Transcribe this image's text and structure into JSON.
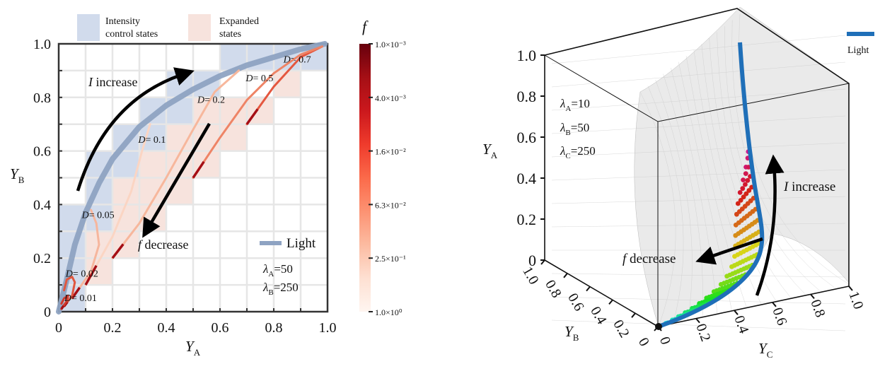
{
  "chart_data": [
    {
      "type": "line",
      "xlabel": "Y",
      "xlabel_sub": "A",
      "ylabel": "Y",
      "ylabel_sub": "B",
      "xlim": [
        0,
        1
      ],
      "ylim": [
        0,
        1
      ],
      "xticks": [
        "0",
        "0.2",
        "0.4",
        "0.6",
        "0.8",
        "1.0"
      ],
      "yticks": [
        "0",
        "0.2",
        "0.4",
        "0.6",
        "0.8",
        "1.0"
      ],
      "grid": true,
      "legend": {
        "intensity": "Intensity control states",
        "intensity_l1": "Intensity",
        "intensity_l2": "control states",
        "expanded_l1": "Expanded",
        "expanded_l2": "states",
        "light": "Light"
      },
      "intensity_cells": [
        [
          0,
          0
        ],
        [
          0,
          1
        ],
        [
          0,
          2
        ],
        [
          0,
          3
        ],
        [
          1,
          3
        ],
        [
          1,
          4
        ],
        [
          1,
          5
        ],
        [
          2,
          5
        ],
        [
          2,
          6
        ],
        [
          3,
          6
        ],
        [
          3,
          7
        ],
        [
          4,
          7
        ],
        [
          4,
          8
        ],
        [
          5,
          8
        ],
        [
          6,
          9
        ],
        [
          7,
          9
        ],
        [
          8,
          9
        ],
        [
          9,
          9
        ]
      ],
      "expanded_cells": [
        [
          1,
          1
        ],
        [
          1,
          2
        ],
        [
          2,
          2
        ],
        [
          2,
          3
        ],
        [
          3,
          3
        ],
        [
          2,
          4
        ],
        [
          3,
          4
        ],
        [
          4,
          4
        ],
        [
          3,
          5
        ],
        [
          4,
          5
        ],
        [
          5,
          5
        ],
        [
          4,
          6
        ],
        [
          5,
          6
        ],
        [
          6,
          6
        ],
        [
          5,
          7
        ],
        [
          6,
          7
        ],
        [
          7,
          7
        ],
        [
          8,
          8
        ]
      ],
      "series": [
        {
          "name": "Light",
          "color": "#8ea3c2",
          "points": [
            [
              0,
              0
            ],
            [
              0.03,
              0.12
            ],
            [
              0.06,
              0.25
            ],
            [
              0.1,
              0.37
            ],
            [
              0.15,
              0.48
            ],
            [
              0.2,
              0.57
            ],
            [
              0.3,
              0.69
            ],
            [
              0.4,
              0.77
            ],
            [
              0.5,
              0.83
            ],
            [
              0.6,
              0.88
            ],
            [
              0.7,
              0.92
            ],
            [
              0.8,
              0.95
            ],
            [
              0.9,
              0.98
            ],
            [
              0.99,
              1
            ]
          ]
        },
        {
          "name": "D= 0.7",
          "color": "#e4573f",
          "label_at": [
            0.82,
            0.93
          ],
          "points": [
            [
              0.7,
              0.7
            ],
            [
              0.8,
              0.84
            ],
            [
              0.9,
              0.95
            ],
            [
              0.98,
              0.99
            ]
          ]
        },
        {
          "name": "D= 0.5",
          "color": "#ee8466",
          "label_at": [
            0.68,
            0.86
          ],
          "points": [
            [
              0.5,
              0.5
            ],
            [
              0.6,
              0.65
            ],
            [
              0.7,
              0.79
            ],
            [
              0.8,
              0.89
            ],
            [
              0.9,
              0.96
            ],
            [
              0.98,
              0.99
            ]
          ]
        },
        {
          "name": "D= 0.2",
          "color": "#f7b79c",
          "label_at": [
            0.5,
            0.78
          ],
          "points": [
            [
              0.2,
              0.2
            ],
            [
              0.3,
              0.33
            ],
            [
              0.4,
              0.5
            ],
            [
              0.5,
              0.68
            ],
            [
              0.58,
              0.82
            ],
            [
              0.67,
              0.9
            ]
          ]
        },
        {
          "name": "D= 0.1",
          "color": "#fbd5c3",
          "label_at": [
            0.28,
            0.63
          ],
          "points": [
            [
              0.1,
              0.1
            ],
            [
              0.2,
              0.28
            ],
            [
              0.27,
              0.45
            ],
            [
              0.31,
              0.6
            ],
            [
              0.34,
              0.7
            ]
          ]
        },
        {
          "name": "D= 0.05",
          "color": "#f6b69d",
          "label_at": [
            0.07,
            0.35
          ],
          "points": [
            [
              0.05,
              0.05
            ],
            [
              0.12,
              0.15
            ],
            [
              0.15,
              0.25
            ],
            [
              0.14,
              0.33
            ],
            [
              0.12,
              0.38
            ]
          ]
        },
        {
          "name": "D= 0.02",
          "color": "#e0573f",
          "label_at": [
            0.01,
            0.13
          ],
          "points": [
            [
              0.02,
              0.02
            ],
            [
              0.05,
              0.06
            ],
            [
              0.06,
              0.11
            ],
            [
              0.05,
              0.13
            ],
            [
              0.03,
              0.12
            ],
            [
              0.02,
              0.08
            ]
          ]
        },
        {
          "name": "D= 0.01",
          "color": "#d03a2d",
          "label_at": [
            0.005,
            0.04
          ],
          "points": [
            [
              0.01,
              0.01
            ],
            [
              0.03,
              0.04
            ],
            [
              0.035,
              0.06
            ],
            [
              0.02,
              0.05
            ],
            [
              0.01,
              0.03
            ]
          ]
        }
      ],
      "annotations": {
        "i_increase_italic": "I",
        "i_increase": " increase",
        "f_decrease_italic": "f",
        "f_decrease": " decrease",
        "lambda_a": "=50",
        "lambda_b": "=250",
        "lambda": "λ",
        "sub_a": "A",
        "sub_b": "B"
      },
      "colorbar": {
        "label": "f",
        "ticks": [
          "1.0×10⁻³",
          "4.0×10⁻³",
          "1.6×10⁻²",
          "6.3×10⁻²",
          "2.5×10⁻¹",
          "1.0×10⁰"
        ],
        "colors": [
          "#67000d",
          "#a50f15",
          "#cb181d",
          "#ef3b2c",
          "#fb6a4a",
          "#fc9272",
          "#fcbba1",
          "#fee0d2",
          "#fff5f0"
        ]
      }
    },
    {
      "type": "scatter",
      "zlabel": "Y",
      "zlabel_sub": "A",
      "xlabel": "Y",
      "xlabel_sub": "B",
      "ylabel": "Y",
      "ylabel_sub": "C",
      "zticks": [
        "1.0",
        "0.8",
        "0.6",
        "0.4",
        "0.2",
        "0"
      ],
      "bticks": [
        "1.0",
        "0.8",
        "0.6",
        "0.4",
        "0.2",
        "0"
      ],
      "cticks": [
        "0",
        "0.2",
        "0.4",
        "0.6",
        "0.8",
        "1.0"
      ],
      "legend": "Light",
      "legend_color": "#1f6fb8",
      "params": {
        "lambda": "λ",
        "a": "A",
        "b": "B",
        "c": "C",
        "va": "=10",
        "vb": "=50",
        "vc": "=250"
      },
      "annotations": {
        "i_increase_italic": "I",
        "i_increase": " increase",
        "f_decrease_italic": "f",
        "f_decrease": " decrease"
      }
    }
  ]
}
